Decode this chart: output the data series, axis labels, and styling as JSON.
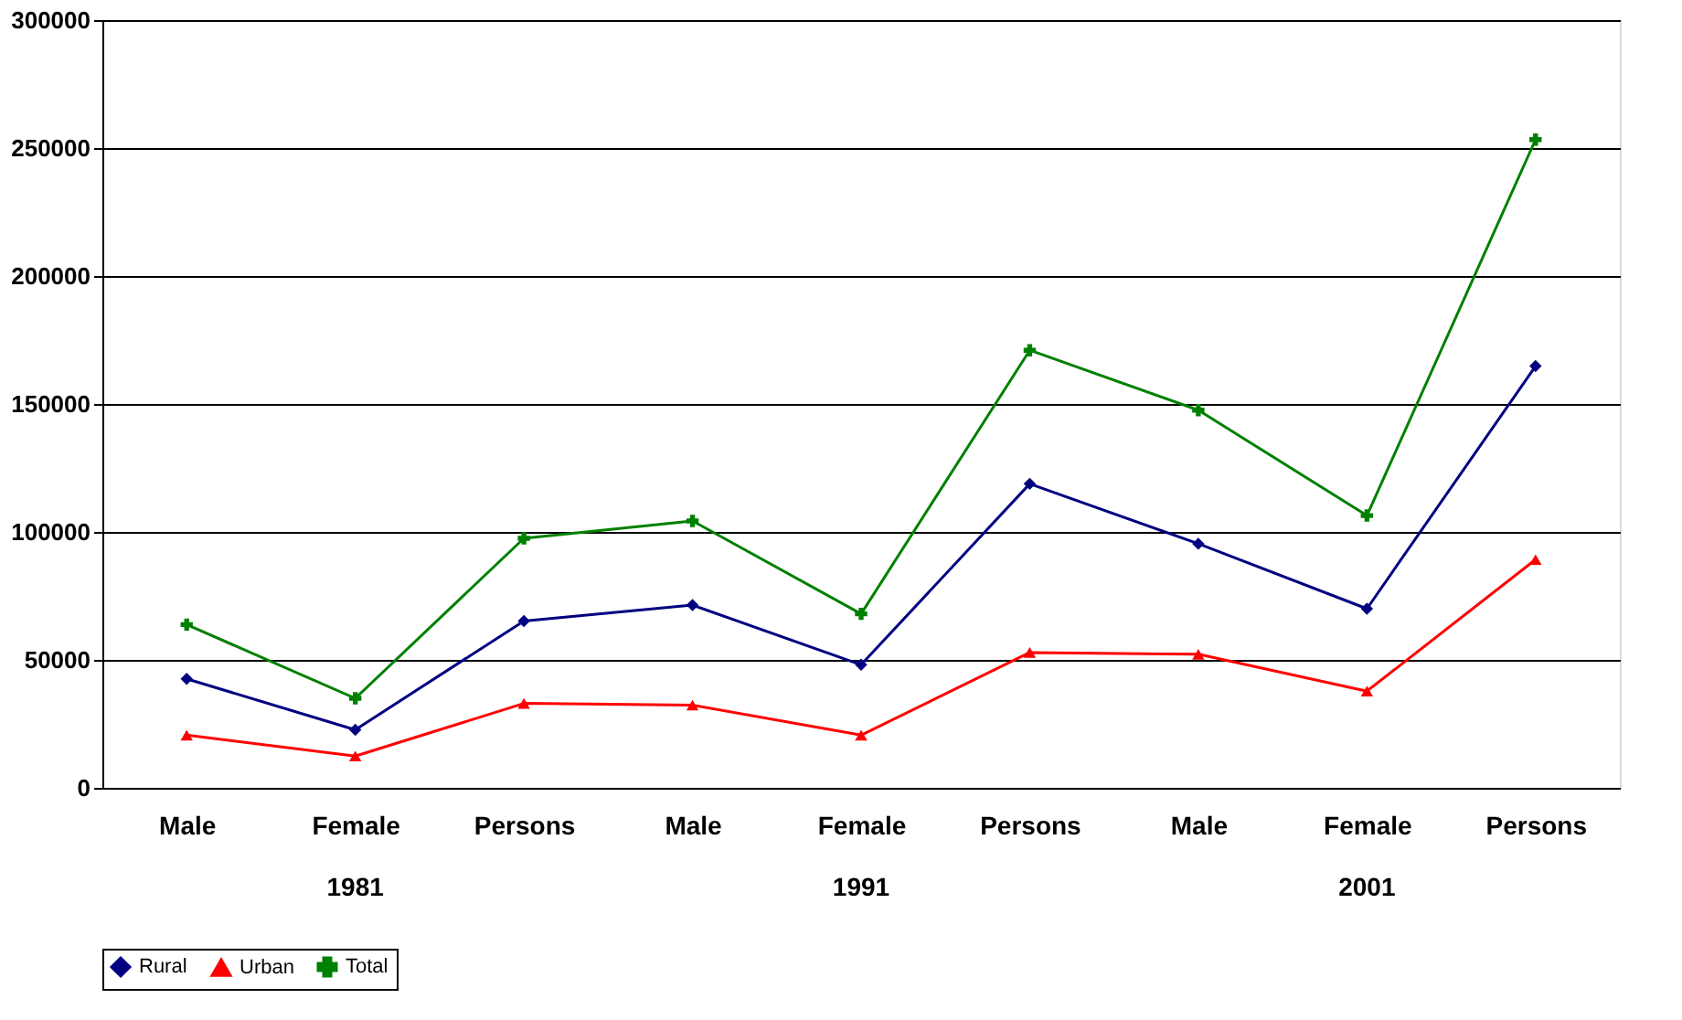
{
  "chart_data": {
    "type": "line",
    "categories": [
      "Male",
      "Female",
      "Persons",
      "Male",
      "Female",
      "Persons",
      "Male",
      "Female",
      "Persons"
    ],
    "annotations": [
      "1981",
      "1991",
      "2001"
    ],
    "series": [
      {
        "name": "Rural",
        "color": "#000080",
        "marker": "diamond",
        "values": [
          42600,
          22700,
          65200,
          71400,
          48100,
          118800,
          95400,
          70000,
          164800
        ]
      },
      {
        "name": "Urban",
        "color": "#ff0000",
        "marker": "triangle",
        "values": [
          20600,
          12400,
          33000,
          32300,
          20600,
          52900,
          52200,
          37800,
          89200
        ]
      },
      {
        "name": "Total",
        "color": "#008000",
        "marker": "cross",
        "values": [
          63800,
          35000,
          97500,
          104300,
          68000,
          171000,
          147600,
          106400,
          253300
        ]
      }
    ],
    "ylim": [
      0,
      300000
    ],
    "yticks": [
      0,
      50000,
      100000,
      150000,
      200000,
      250000,
      300000
    ],
    "grid": "y",
    "legend": "bottom"
  }
}
